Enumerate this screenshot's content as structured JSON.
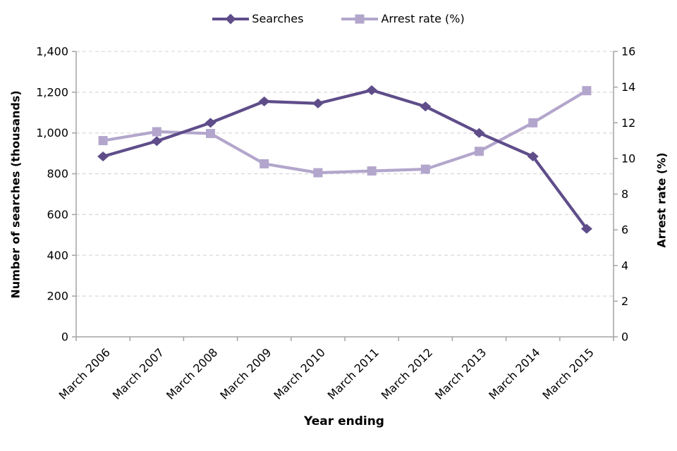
{
  "chart_data": {
    "type": "line",
    "title": "",
    "x_categories": [
      "March 2006",
      "March 2007",
      "March 2008",
      "March 2009",
      "March 2010",
      "March 2011",
      "March 2012",
      "March 2013",
      "March 2014",
      "March 2015"
    ],
    "series": [
      {
        "name": "Searches",
        "axis": "left",
        "marker": "diamond",
        "color": "#5f4d8a",
        "values": [
          885,
          960,
          1050,
          1155,
          1145,
          1210,
          1130,
          1000,
          885,
          530
        ]
      },
      {
        "name": "Arrest rate (%)",
        "axis": "right",
        "marker": "square",
        "color": "#b3a6cc",
        "values": [
          11.0,
          11.5,
          11.4,
          9.7,
          9.2,
          9.3,
          9.4,
          10.4,
          12.0,
          13.8
        ]
      }
    ],
    "left_axis": {
      "title": "Number of searches (thousands)",
      "min": 0,
      "max": 1400,
      "step": 200,
      "tick_labels": [
        "0",
        "200",
        "400",
        "600",
        "800",
        "1,000",
        "1,200",
        "1,400"
      ]
    },
    "right_axis": {
      "title": "Arrest rate (%)",
      "min": 0,
      "max": 16,
      "step": 2,
      "tick_labels": [
        "0",
        "2",
        "4",
        "6",
        "8",
        "10",
        "12",
        "14",
        "16"
      ]
    },
    "x_axis": {
      "title": "Year ending"
    },
    "legend_position": "top",
    "grid": "horizontal dashed"
  },
  "legend": {
    "items": [
      {
        "label": "Searches"
      },
      {
        "label": "Arrest rate (%)"
      }
    ]
  },
  "colors": {
    "searches": "#5f4d8a",
    "arrest_rate": "#b3a6cc",
    "gridline": "#d9d9d9",
    "axis": "#a3a3a3",
    "text": "#000000",
    "background": "#ffffff"
  }
}
